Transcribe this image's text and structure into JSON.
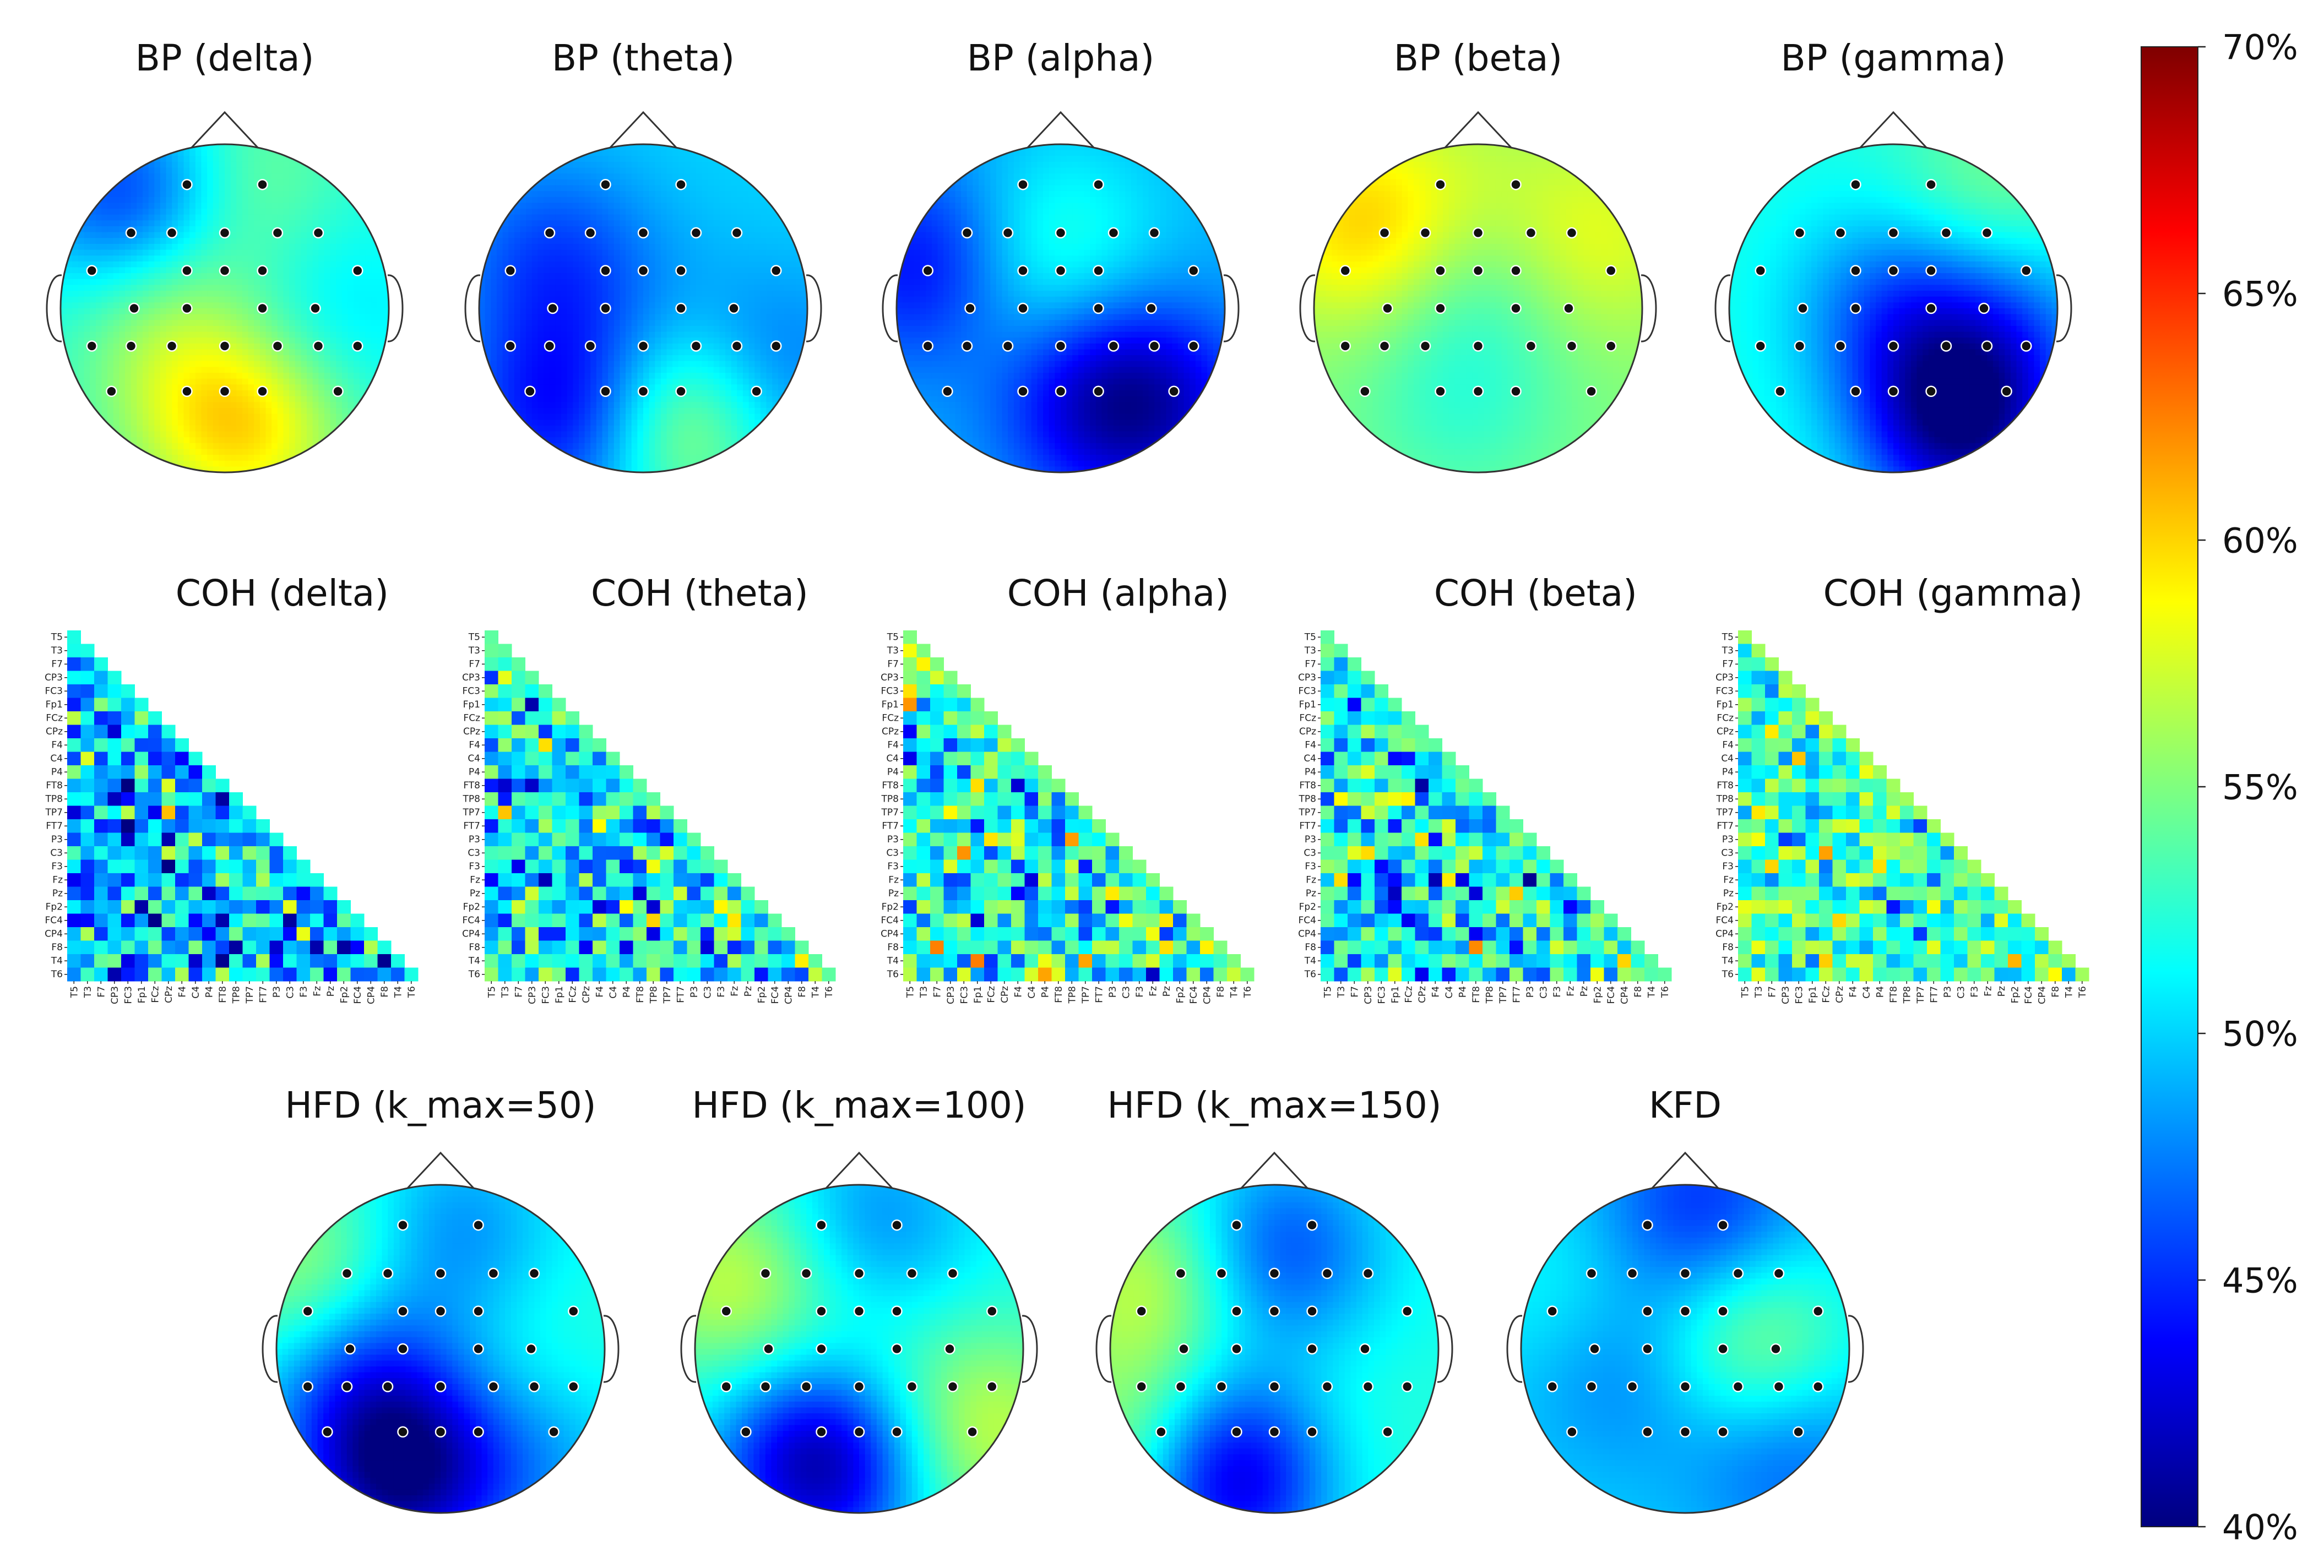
{
  "colorbar": {
    "colors": [
      "#00007f",
      "#0000ff",
      "#007fff",
      "#00ffff",
      "#7fff7f",
      "#ffff00",
      "#ff7f00",
      "#ff0000",
      "#7f0000"
    ],
    "ticks": [
      "40%",
      "45%",
      "50%",
      "55%",
      "60%",
      "65%",
      "70%"
    ],
    "range": [
      40,
      70
    ]
  },
  "topo_style": {
    "dot_color": "#111111",
    "outline_color": "#333333"
  },
  "coh_channels": [
    "T5",
    "T3",
    "F7",
    "CP3",
    "FC3",
    "Fp1",
    "FCz",
    "CPz",
    "F4",
    "C4",
    "P4",
    "FT8",
    "TP8",
    "TP7",
    "FT7",
    "P3",
    "C3",
    "F3",
    "Fz",
    "Pz",
    "Fp2",
    "FC4",
    "CP4",
    "F8",
    "T4",
    "T6"
  ],
  "chart_data": [
    {
      "type": "heatmap",
      "title": "BP (delta)",
      "kind": "topomap",
      "unit": "%",
      "mean": 52,
      "sources": [
        [
          0.22,
          0.18,
          44
        ],
        [
          0.3,
          0.45,
          56
        ],
        [
          0.6,
          0.86,
          58
        ],
        [
          0.4,
          0.82,
          55
        ],
        [
          0.55,
          0.1,
          55
        ],
        [
          0.8,
          0.55,
          50
        ]
      ]
    },
    {
      "type": "heatmap",
      "title": "BP (theta)",
      "kind": "topomap",
      "unit": "%",
      "mean": 50,
      "sources": [
        [
          0.62,
          0.84,
          58
        ],
        [
          0.28,
          0.82,
          43
        ],
        [
          0.22,
          0.35,
          46
        ],
        [
          0.85,
          0.7,
          46
        ],
        [
          0.45,
          0.55,
          49
        ]
      ]
    },
    {
      "type": "heatmap",
      "title": "BP (alpha)",
      "kind": "topomap",
      "unit": "%",
      "mean": 49,
      "sources": [
        [
          0.1,
          0.38,
          43
        ],
        [
          0.6,
          0.78,
          44
        ],
        [
          0.8,
          0.8,
          44
        ],
        [
          0.5,
          0.3,
          52
        ],
        [
          0.3,
          0.45,
          51
        ]
      ]
    },
    {
      "type": "heatmap",
      "title": "BP (beta)",
      "kind": "topomap",
      "unit": "%",
      "mean": 55,
      "sources": [
        [
          0.15,
          0.25,
          60
        ],
        [
          0.85,
          0.3,
          58
        ],
        [
          0.5,
          0.45,
          53
        ],
        [
          0.45,
          0.8,
          53
        ],
        [
          0.5,
          0.1,
          56
        ]
      ]
    },
    {
      "type": "heatmap",
      "title": "BP (gamma)",
      "kind": "topomap",
      "unit": "%",
      "mean": 52,
      "sources": [
        [
          0.7,
          0.85,
          41
        ],
        [
          0.5,
          0.5,
          47
        ],
        [
          0.85,
          0.55,
          48
        ],
        [
          0.15,
          0.4,
          52
        ],
        [
          0.8,
          0.15,
          55
        ]
      ]
    },
    {
      "type": "heatmap",
      "title": "COH (delta)",
      "kind": "triangular",
      "unit": "%",
      "mean": 49,
      "spread": 5,
      "seed": 11
    },
    {
      "type": "heatmap",
      "title": "COH (theta)",
      "kind": "triangular",
      "unit": "%",
      "mean": 51,
      "spread": 5,
      "seed": 23
    },
    {
      "type": "heatmap",
      "title": "COH (alpha)",
      "kind": "triangular",
      "unit": "%",
      "mean": 52,
      "spread": 5,
      "seed": 37
    },
    {
      "type": "heatmap",
      "title": "COH (beta)",
      "kind": "triangular",
      "unit": "%",
      "mean": 51,
      "spread": 5,
      "seed": 41
    },
    {
      "type": "heatmap",
      "title": "COH (gamma)",
      "kind": "triangular",
      "unit": "%",
      "mean": 53,
      "spread": 4,
      "seed": 53
    },
    {
      "type": "heatmap",
      "title": "HFD (k_max=50)",
      "kind": "topomap",
      "unit": "%",
      "mean": 52,
      "sources": [
        [
          0.38,
          0.88,
          41
        ],
        [
          0.55,
          0.15,
          48
        ],
        [
          0.25,
          0.55,
          46
        ],
        [
          0.12,
          0.3,
          57
        ],
        [
          0.8,
          0.85,
          49
        ],
        [
          0.75,
          0.5,
          53
        ]
      ]
    },
    {
      "type": "heatmap",
      "title": "HFD (k_max=100)",
      "kind": "topomap",
      "unit": "%",
      "mean": 52,
      "sources": [
        [
          0.38,
          0.85,
          41
        ],
        [
          0.55,
          0.12,
          48
        ],
        [
          0.12,
          0.3,
          57
        ],
        [
          0.88,
          0.75,
          57
        ],
        [
          0.5,
          0.5,
          53
        ]
      ]
    },
    {
      "type": "heatmap",
      "title": "HFD (k_max=150)",
      "kind": "topomap",
      "unit": "%",
      "mean": 52,
      "sources": [
        [
          0.36,
          0.88,
          41
        ],
        [
          0.52,
          0.2,
          46
        ],
        [
          0.12,
          0.3,
          57
        ],
        [
          0.1,
          0.8,
          57
        ],
        [
          0.65,
          0.75,
          53
        ]
      ]
    },
    {
      "type": "heatmap",
      "title": "KFD",
      "kind": "topomap",
      "unit": "%",
      "mean": 50,
      "sources": [
        [
          0.55,
          0.08,
          45
        ],
        [
          0.3,
          0.55,
          47
        ],
        [
          0.8,
          0.8,
          46
        ],
        [
          0.72,
          0.5,
          56
        ],
        [
          0.15,
          0.35,
          52
        ]
      ]
    }
  ]
}
